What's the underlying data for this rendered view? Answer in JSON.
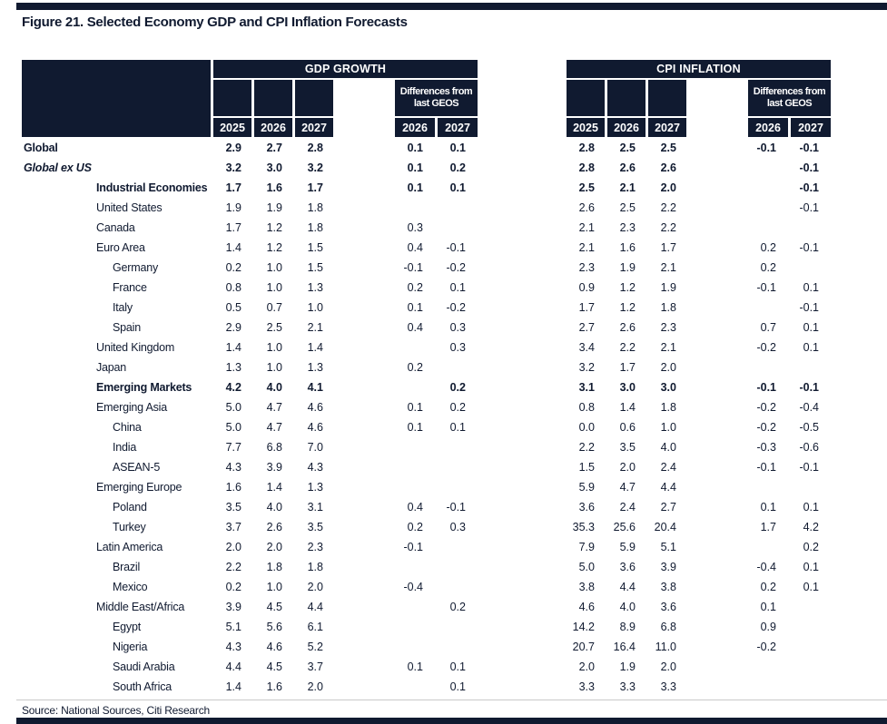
{
  "title": "Figure 21. Selected Economy GDP and CPI Inflation Forecasts",
  "source": "Source: National Sources, Citi Research",
  "colors": {
    "navy": "#101a30",
    "header_text": "#ffffff",
    "body_text": "#101a30"
  },
  "table": {
    "groups": [
      {
        "label": "GDP GROWTH"
      },
      {
        "label": "CPI INFLATION"
      }
    ],
    "diff_header_line1": "Differences from",
    "diff_header_line2": "last GEOS",
    "years": [
      "2025",
      "2026",
      "2027"
    ],
    "diff_years": [
      "2026",
      "2027"
    ],
    "rows": [
      {
        "label": "Global",
        "indent": 0,
        "bold": true,
        "italic": false,
        "gdp": [
          "2.9",
          "2.7",
          "2.8"
        ],
        "gdp_diff": [
          "0.1",
          "0.1"
        ],
        "cpi": [
          "2.8",
          "2.5",
          "2.5"
        ],
        "cpi_diff": [
          "-0.1",
          "-0.1"
        ]
      },
      {
        "label": "Global ex US",
        "indent": 0,
        "bold": true,
        "italic": true,
        "gdp": [
          "3.2",
          "3.0",
          "3.2"
        ],
        "gdp_diff": [
          "0.1",
          "0.2"
        ],
        "cpi": [
          "2.8",
          "2.6",
          "2.6"
        ],
        "cpi_diff": [
          "",
          "-0.1"
        ]
      },
      {
        "label": "Industrial Economies",
        "indent": 1,
        "bold": true,
        "italic": false,
        "gdp": [
          "1.7",
          "1.6",
          "1.7"
        ],
        "gdp_diff": [
          "0.1",
          "0.1"
        ],
        "cpi": [
          "2.5",
          "2.1",
          "2.0"
        ],
        "cpi_diff": [
          "",
          "-0.1"
        ]
      },
      {
        "label": "United States",
        "indent": 1,
        "bold": false,
        "italic": false,
        "gdp": [
          "1.9",
          "1.9",
          "1.8"
        ],
        "gdp_diff": [
          "",
          ""
        ],
        "cpi": [
          "2.6",
          "2.5",
          "2.2"
        ],
        "cpi_diff": [
          "",
          "-0.1"
        ]
      },
      {
        "label": "Canada",
        "indent": 1,
        "bold": false,
        "italic": false,
        "gdp": [
          "1.7",
          "1.2",
          "1.8"
        ],
        "gdp_diff": [
          "0.3",
          ""
        ],
        "cpi": [
          "2.1",
          "2.3",
          "2.2"
        ],
        "cpi_diff": [
          "",
          ""
        ]
      },
      {
        "label": "Euro Area",
        "indent": 1,
        "bold": false,
        "italic": false,
        "gdp": [
          "1.4",
          "1.2",
          "1.5"
        ],
        "gdp_diff": [
          "0.4",
          "-0.1"
        ],
        "cpi": [
          "2.1",
          "1.6",
          "1.7"
        ],
        "cpi_diff": [
          "0.2",
          "-0.1"
        ]
      },
      {
        "label": "Germany",
        "indent": 2,
        "bold": false,
        "italic": false,
        "gdp": [
          "0.2",
          "1.0",
          "1.5"
        ],
        "gdp_diff": [
          "-0.1",
          "-0.2"
        ],
        "cpi": [
          "2.3",
          "1.9",
          "2.1"
        ],
        "cpi_diff": [
          "0.2",
          ""
        ]
      },
      {
        "label": "France",
        "indent": 2,
        "bold": false,
        "italic": false,
        "gdp": [
          "0.8",
          "1.0",
          "1.3"
        ],
        "gdp_diff": [
          "0.2",
          "0.1"
        ],
        "cpi": [
          "0.9",
          "1.2",
          "1.9"
        ],
        "cpi_diff": [
          "-0.1",
          "0.1"
        ]
      },
      {
        "label": "Italy",
        "indent": 2,
        "bold": false,
        "italic": false,
        "gdp": [
          "0.5",
          "0.7",
          "1.0"
        ],
        "gdp_diff": [
          "0.1",
          "-0.2"
        ],
        "cpi": [
          "1.7",
          "1.2",
          "1.8"
        ],
        "cpi_diff": [
          "",
          "-0.1"
        ]
      },
      {
        "label": "Spain",
        "indent": 2,
        "bold": false,
        "italic": false,
        "gdp": [
          "2.9",
          "2.5",
          "2.1"
        ],
        "gdp_diff": [
          "0.4",
          "0.3"
        ],
        "cpi": [
          "2.7",
          "2.6",
          "2.3"
        ],
        "cpi_diff": [
          "0.7",
          "0.1"
        ]
      },
      {
        "label": "United Kingdom",
        "indent": 1,
        "bold": false,
        "italic": false,
        "gdp": [
          "1.4",
          "1.0",
          "1.4"
        ],
        "gdp_diff": [
          "",
          "0.3"
        ],
        "cpi": [
          "3.4",
          "2.2",
          "2.1"
        ],
        "cpi_diff": [
          "-0.2",
          "0.1"
        ]
      },
      {
        "label": "Japan",
        "indent": 1,
        "bold": false,
        "italic": false,
        "gdp": [
          "1.3",
          "1.0",
          "1.3"
        ],
        "gdp_diff": [
          "0.2",
          ""
        ],
        "cpi": [
          "3.2",
          "1.7",
          "2.0"
        ],
        "cpi_diff": [
          "",
          ""
        ]
      },
      {
        "label": "Emerging Markets",
        "indent": 1,
        "bold": true,
        "italic": false,
        "gdp": [
          "4.2",
          "4.0",
          "4.1"
        ],
        "gdp_diff": [
          "",
          "0.2"
        ],
        "cpi": [
          "3.1",
          "3.0",
          "3.0"
        ],
        "cpi_diff": [
          "-0.1",
          "-0.1"
        ]
      },
      {
        "label": "Emerging Asia",
        "indent": 1,
        "bold": false,
        "italic": false,
        "gdp": [
          "5.0",
          "4.7",
          "4.6"
        ],
        "gdp_diff": [
          "0.1",
          "0.2"
        ],
        "cpi": [
          "0.8",
          "1.4",
          "1.8"
        ],
        "cpi_diff": [
          "-0.2",
          "-0.4"
        ]
      },
      {
        "label": "China",
        "indent": 2,
        "bold": false,
        "italic": false,
        "gdp": [
          "5.0",
          "4.7",
          "4.6"
        ],
        "gdp_diff": [
          "0.1",
          "0.1"
        ],
        "cpi": [
          "0.0",
          "0.6",
          "1.0"
        ],
        "cpi_diff": [
          "-0.2",
          "-0.5"
        ]
      },
      {
        "label": "India",
        "indent": 2,
        "bold": false,
        "italic": false,
        "gdp": [
          "7.7",
          "6.8",
          "7.0"
        ],
        "gdp_diff": [
          "",
          ""
        ],
        "cpi": [
          "2.2",
          "3.5",
          "4.0"
        ],
        "cpi_diff": [
          "-0.3",
          "-0.6"
        ]
      },
      {
        "label": "ASEAN-5",
        "indent": 2,
        "bold": false,
        "italic": false,
        "gdp": [
          "4.3",
          "3.9",
          "4.3"
        ],
        "gdp_diff": [
          "",
          ""
        ],
        "cpi": [
          "1.5",
          "2.0",
          "2.4"
        ],
        "cpi_diff": [
          "-0.1",
          "-0.1"
        ]
      },
      {
        "label": "Emerging Europe",
        "indent": 1,
        "bold": false,
        "italic": false,
        "gdp": [
          "1.6",
          "1.4",
          "1.3"
        ],
        "gdp_diff": [
          "",
          ""
        ],
        "cpi": [
          "5.9",
          "4.7",
          "4.4"
        ],
        "cpi_diff": [
          "",
          ""
        ]
      },
      {
        "label": "Poland",
        "indent": 2,
        "bold": false,
        "italic": false,
        "gdp": [
          "3.5",
          "4.0",
          "3.1"
        ],
        "gdp_diff": [
          "0.4",
          "-0.1"
        ],
        "cpi": [
          "3.6",
          "2.4",
          "2.7"
        ],
        "cpi_diff": [
          "0.1",
          "0.1"
        ]
      },
      {
        "label": "Turkey",
        "indent": 2,
        "bold": false,
        "italic": false,
        "gdp": [
          "3.7",
          "2.6",
          "3.5"
        ],
        "gdp_diff": [
          "0.2",
          "0.3"
        ],
        "cpi": [
          "35.3",
          "25.6",
          "20.4"
        ],
        "cpi_diff": [
          "1.7",
          "4.2"
        ]
      },
      {
        "label": "Latin America",
        "indent": 1,
        "bold": false,
        "italic": false,
        "gdp": [
          "2.0",
          "2.0",
          "2.3"
        ],
        "gdp_diff": [
          "-0.1",
          ""
        ],
        "cpi": [
          "7.9",
          "5.9",
          "5.1"
        ],
        "cpi_diff": [
          "",
          "0.2"
        ]
      },
      {
        "label": "Brazil",
        "indent": 2,
        "bold": false,
        "italic": false,
        "gdp": [
          "2.2",
          "1.8",
          "1.8"
        ],
        "gdp_diff": [
          "",
          ""
        ],
        "cpi": [
          "5.0",
          "3.6",
          "3.9"
        ],
        "cpi_diff": [
          "-0.4",
          "0.1"
        ]
      },
      {
        "label": "Mexico",
        "indent": 2,
        "bold": false,
        "italic": false,
        "gdp": [
          "0.2",
          "1.0",
          "2.0"
        ],
        "gdp_diff": [
          "-0.4",
          ""
        ],
        "cpi": [
          "3.8",
          "4.4",
          "3.8"
        ],
        "cpi_diff": [
          "0.2",
          "0.1"
        ]
      },
      {
        "label": "Middle East/Africa",
        "indent": 1,
        "bold": false,
        "italic": false,
        "gdp": [
          "3.9",
          "4.5",
          "4.4"
        ],
        "gdp_diff": [
          "",
          "0.2"
        ],
        "cpi": [
          "4.6",
          "4.0",
          "3.6"
        ],
        "cpi_diff": [
          "0.1",
          ""
        ]
      },
      {
        "label": "Egypt",
        "indent": 2,
        "bold": false,
        "italic": false,
        "gdp": [
          "5.1",
          "5.6",
          "6.1"
        ],
        "gdp_diff": [
          "",
          ""
        ],
        "cpi": [
          "14.2",
          "8.9",
          "6.8"
        ],
        "cpi_diff": [
          "0.9",
          ""
        ]
      },
      {
        "label": "Nigeria",
        "indent": 2,
        "bold": false,
        "italic": false,
        "gdp": [
          "4.3",
          "4.6",
          "5.2"
        ],
        "gdp_diff": [
          "",
          ""
        ],
        "cpi": [
          "20.7",
          "16.4",
          "11.0"
        ],
        "cpi_diff": [
          "-0.2",
          ""
        ]
      },
      {
        "label": "Saudi Arabia",
        "indent": 2,
        "bold": false,
        "italic": false,
        "gdp": [
          "4.4",
          "4.5",
          "3.7"
        ],
        "gdp_diff": [
          "0.1",
          "0.1"
        ],
        "cpi": [
          "2.0",
          "1.9",
          "2.0"
        ],
        "cpi_diff": [
          "",
          ""
        ]
      },
      {
        "label": "South Africa",
        "indent": 2,
        "bold": false,
        "italic": false,
        "gdp": [
          "1.4",
          "1.6",
          "2.0"
        ],
        "gdp_diff": [
          "",
          "0.1"
        ],
        "cpi": [
          "3.3",
          "3.3",
          "3.3"
        ],
        "cpi_diff": [
          "",
          ""
        ]
      }
    ]
  }
}
